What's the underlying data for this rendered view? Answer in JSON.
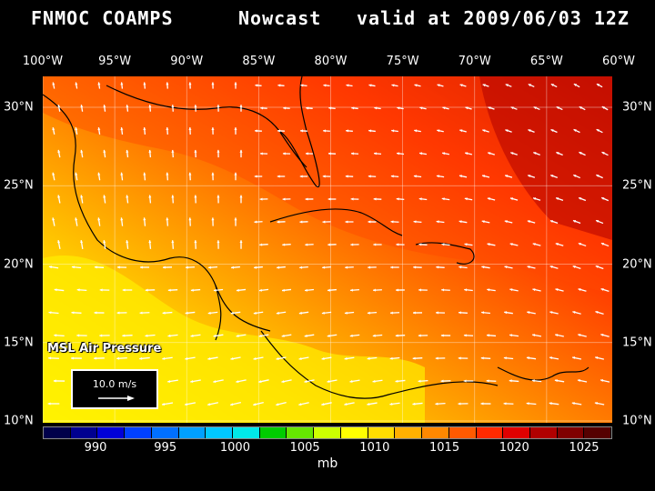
{
  "header": {
    "source": "FNMOC COAMPS",
    "product": "Nowcast",
    "valid": "valid at 2009/06/03 12Z"
  },
  "axes": {
    "longitude_labels": [
      "100°W",
      "95°W",
      "90°W",
      "85°W",
      "80°W",
      "75°W",
      "70°W",
      "65°W",
      "60°W"
    ],
    "latitude_labels": [
      "30°N",
      "25°N",
      "20°N",
      "15°N",
      "10°N"
    ]
  },
  "map": {
    "field_label": "MSL Air Pressure",
    "reference_vector": "10.0 m/s",
    "lon_range": [
      -100,
      -60
    ],
    "lat_range": [
      10,
      31.5
    ]
  },
  "colorbar": {
    "labels": [
      "990",
      "995",
      "1000",
      "1005",
      "1010",
      "1015",
      "1020",
      "1025"
    ],
    "unit": "mb",
    "colors": [
      "#00004a",
      "#000090",
      "#0000d8",
      "#0040ff",
      "#0070ff",
      "#00a0ff",
      "#00c8ff",
      "#00e8e8",
      "#00cc00",
      "#66e600",
      "#ccff00",
      "#ffff00",
      "#ffdd00",
      "#ffb000",
      "#ff8800",
      "#ff5a00",
      "#ff2a00",
      "#e00000",
      "#b00000",
      "#800000",
      "#550000"
    ]
  },
  "colors": {
    "background": "#000000",
    "land_outline": "#000000",
    "wind_arrow": "#ffffff"
  }
}
